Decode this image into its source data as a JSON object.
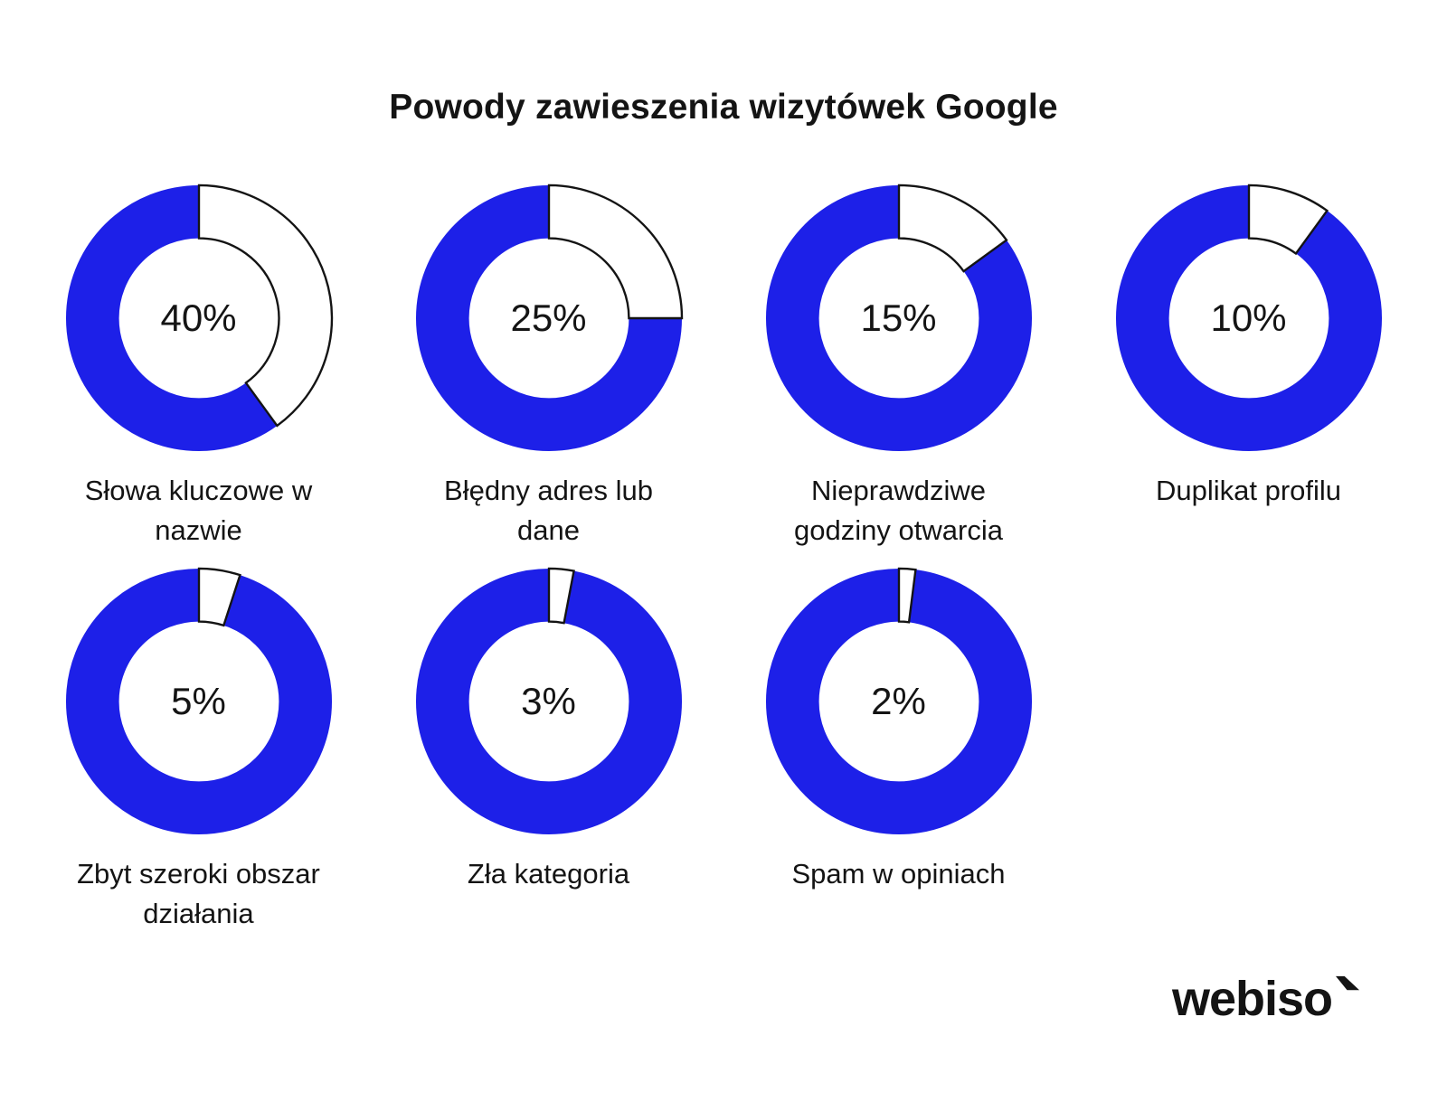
{
  "title": "Powody zawieszenia wizytówek Google",
  "brand": {
    "name": "webiso"
  },
  "colors": {
    "ring_blue": "#1d20e8",
    "notch_fill": "#ffffff",
    "notch_stroke": "#141414",
    "text": "#141414"
  },
  "chart_data": {
    "type": "pie",
    "variant": "donut-grid",
    "title": "Powody zawieszenia wizytówek Google",
    "unit": "%",
    "legend_position": "label-below-each-donut",
    "items": [
      {
        "label": "Słowa kluczowe w nazwie",
        "label_lines": [
          "Słowa kluczowe w",
          "nazwie"
        ],
        "value": 40,
        "display": "40%"
      },
      {
        "label": "Błędny adres lub dane",
        "label_lines": [
          "Błędny adres lub",
          "dane"
        ],
        "value": 25,
        "display": "25%"
      },
      {
        "label": "Nieprawdziwe godziny otwarcia",
        "label_lines": [
          "Nieprawdziwe",
          "godziny otwarcia"
        ],
        "value": 15,
        "display": "15%"
      },
      {
        "label": "Duplikat profilu",
        "label_lines": [
          "Duplikat profilu"
        ],
        "value": 10,
        "display": "10%"
      },
      {
        "label": "Zbyt szeroki obszar działania",
        "label_lines": [
          "Zbyt szeroki obszar",
          "działania"
        ],
        "value": 5,
        "display": "5%"
      },
      {
        "label": "Zła kategoria",
        "label_lines": [
          "Zła kategoria"
        ],
        "value": 3,
        "display": "3%"
      },
      {
        "label": "Spam w opiniach",
        "label_lines": [
          "Spam w opiniach"
        ],
        "value": 2,
        "display": "2%"
      }
    ]
  }
}
